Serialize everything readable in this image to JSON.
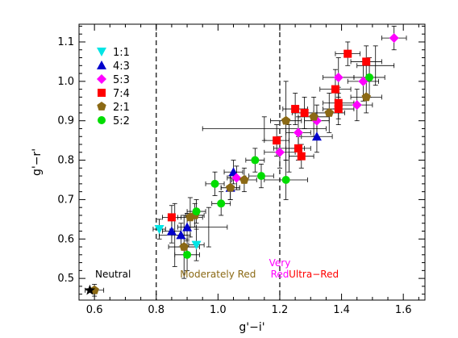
{
  "chart_data": {
    "type": "scatter",
    "xlabel": "g'−i'",
    "ylabel": "g'−r'",
    "xlim": [
      0.55,
      1.67
    ],
    "ylim": [
      0.445,
      1.145
    ],
    "xticks": [
      "0.6",
      "0.8",
      "1.0",
      "1.2",
      "1.4",
      "1.6"
    ],
    "xtick_values": [
      0.6,
      0.8,
      1.0,
      1.2,
      1.4,
      1.6
    ],
    "yticks": [
      "0.5",
      "0.6",
      "0.7",
      "0.8",
      "0.9",
      "1.0",
      "1.1"
    ],
    "ytick_values": [
      0.5,
      0.6,
      0.7,
      0.8,
      0.9,
      1.0,
      1.1
    ],
    "vlines": [
      0.8,
      1.2
    ],
    "legend_position": "top-left",
    "series": [
      {
        "name": "1:1",
        "marker": "triangle-down",
        "color": "#00e5e5",
        "points": [
          {
            "x": 0.81,
            "y": 0.625,
            "xerr": 0.02,
            "yerr": 0.025
          },
          {
            "x": 0.93,
            "y": 0.585,
            "xerr": 0.025,
            "yerr": 0.04
          }
        ]
      },
      {
        "name": "4:3",
        "marker": "triangle-up",
        "color": "#0000cc",
        "points": [
          {
            "x": 0.85,
            "y": 0.62,
            "xerr": 0.03,
            "yerr": 0.03
          },
          {
            "x": 0.88,
            "y": 0.61,
            "xerr": 0.03,
            "yerr": 0.03
          },
          {
            "x": 0.9,
            "y": 0.63,
            "xerr": 0.03,
            "yerr": 0.035
          },
          {
            "x": 1.04,
            "y": 0.73,
            "xerr": 0.03,
            "yerr": 0.03
          },
          {
            "x": 1.05,
            "y": 0.77,
            "xerr": 0.03,
            "yerr": 0.03
          },
          {
            "x": 1.32,
            "y": 0.86,
            "xerr": 0.05,
            "yerr": 0.04
          }
        ]
      },
      {
        "name": "5:3",
        "marker": "diamond",
        "color": "#ff00ff",
        "points": [
          {
            "x": 1.06,
            "y": 0.755,
            "xerr": 0.03,
            "yerr": 0.03
          },
          {
            "x": 1.2,
            "y": 0.82,
            "xerr": 0.05,
            "yerr": 0.04
          },
          {
            "x": 1.26,
            "y": 0.87,
            "xerr": 0.04,
            "yerr": 0.04
          },
          {
            "x": 1.32,
            "y": 0.9,
            "xerr": 0.04,
            "yerr": 0.04
          },
          {
            "x": 1.39,
            "y": 1.01,
            "xerr": 0.05,
            "yerr": 0.05
          },
          {
            "x": 1.45,
            "y": 0.94,
            "xerr": 0.05,
            "yerr": 0.04
          },
          {
            "x": 1.47,
            "y": 1.0,
            "xerr": 0.05,
            "yerr": 0.05
          },
          {
            "x": 1.57,
            "y": 1.11,
            "xerr": 0.04,
            "yerr": 0.03
          }
        ]
      },
      {
        "name": "7:4",
        "marker": "square",
        "color": "#ff0000",
        "points": [
          {
            "x": 0.85,
            "y": 0.655,
            "xerr": 0.03,
            "yerr": 0.03
          },
          {
            "x": 1.19,
            "y": 0.85,
            "xerr": 0.04,
            "yerr": 0.04
          },
          {
            "x": 1.25,
            "y": 0.93,
            "xerr": 0.04,
            "yerr": 0.04
          },
          {
            "x": 1.26,
            "y": 0.83,
            "xerr": 0.04,
            "yerr": 0.03
          },
          {
            "x": 1.27,
            "y": 0.81,
            "xerr": 0.04,
            "yerr": 0.03
          },
          {
            "x": 1.28,
            "y": 0.92,
            "xerr": 0.04,
            "yerr": 0.04
          },
          {
            "x": 1.38,
            "y": 0.98,
            "xerr": 0.05,
            "yerr": 0.05
          },
          {
            "x": 1.39,
            "y": 0.93,
            "xerr": 0.05,
            "yerr": 0.04
          },
          {
            "x": 1.39,
            "y": 0.945,
            "xerr": 0.05,
            "yerr": 0.04
          },
          {
            "x": 1.42,
            "y": 1.07,
            "xerr": 0.04,
            "yerr": 0.03
          },
          {
            "x": 1.48,
            "y": 1.05,
            "xerr": 0.05,
            "yerr": 0.04
          }
        ]
      },
      {
        "name": "2:1",
        "marker": "pentagon",
        "color": "#8b6914",
        "points": [
          {
            "x": 0.6,
            "y": 0.47,
            "xerr": 0.03,
            "yerr": 0.015
          },
          {
            "x": 0.89,
            "y": 0.58,
            "xerr": 0.05,
            "yerr": 0.08
          },
          {
            "x": 0.91,
            "y": 0.655,
            "xerr": 0.04,
            "yerr": 0.05
          },
          {
            "x": 0.925,
            "y": 0.66,
            "xerr": 0.03,
            "yerr": 0.03
          },
          {
            "x": 1.04,
            "y": 0.73,
            "xerr": 0.03,
            "yerr": 0.03
          },
          {
            "x": 1.085,
            "y": 0.75,
            "xerr": 0.04,
            "yerr": 0.03
          },
          {
            "x": 1.22,
            "y": 0.9,
            "xerr": 0.05,
            "yerr": 0.1
          },
          {
            "x": 1.31,
            "y": 0.91,
            "xerr": 0.05,
            "yerr": 0.05
          },
          {
            "x": 1.36,
            "y": 0.92,
            "xerr": 0.05,
            "yerr": 0.05
          },
          {
            "x": 1.48,
            "y": 0.96,
            "xerr": 0.05,
            "yerr": 0.04
          }
        ]
      },
      {
        "name": "5:2",
        "marker": "circle",
        "color": "#00dd00",
        "points": [
          {
            "x": 0.9,
            "y": 0.56,
            "xerr": 0.04,
            "yerr": 0.04
          },
          {
            "x": 0.93,
            "y": 0.67,
            "xerr": 0.03,
            "yerr": 0.03
          },
          {
            "x": 0.99,
            "y": 0.74,
            "xerr": 0.03,
            "yerr": 0.03
          },
          {
            "x": 1.01,
            "y": 0.69,
            "xerr": 0.03,
            "yerr": 0.03
          },
          {
            "x": 1.12,
            "y": 0.8,
            "xerr": 0.03,
            "yerr": 0.03
          },
          {
            "x": 1.14,
            "y": 0.76,
            "xerr": 0.04,
            "yerr": 0.03
          },
          {
            "x": 1.22,
            "y": 0.75,
            "xerr": 0.07,
            "yerr": 0.05
          },
          {
            "x": 1.49,
            "y": 1.01,
            "xerr": 0.05,
            "yerr": 0.05
          }
        ]
      }
    ],
    "extra_errorbars": [
      {
        "x": 0.86,
        "y": 0.61,
        "xerr": 0.05,
        "yerr": 0.08
      },
      {
        "x": 0.97,
        "y": 0.63,
        "xerr": 0.06,
        "yerr": 0.05
      },
      {
        "x": 1.15,
        "y": 0.88,
        "xerr": 0.2,
        "yerr": 0.03
      },
      {
        "x": 1.23,
        "y": 0.83,
        "xerr": 0.05,
        "yerr": 0.06
      },
      {
        "x": 1.51,
        "y": 1.04,
        "xerr": 0.06,
        "yerr": 0.05
      }
    ],
    "reference_point": {
      "label": "Neutral",
      "x": 0.585,
      "y": 0.47,
      "marker": "star",
      "color": "#000000"
    },
    "region_labels": [
      {
        "lines": [
          "Moderately Red"
        ],
        "color": "#8b6914",
        "x": 1.0
      },
      {
        "lines": [
          "Very",
          "Red"
        ],
        "color": "#ff00ff",
        "x": 1.2
      },
      {
        "lines": [
          "Ultra−Red"
        ],
        "color": "#ff0000",
        "x": 1.31
      },
      {
        "lines": [
          "Neutral"
        ],
        "color": "#000000",
        "x": 0.66
      }
    ]
  }
}
